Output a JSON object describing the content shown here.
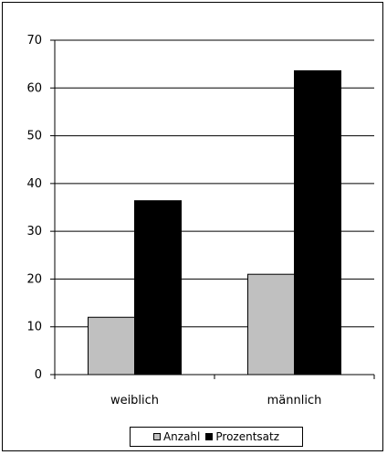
{
  "chart_data": {
    "type": "bar",
    "title": "",
    "xlabel": "",
    "ylabel": "",
    "categories": [
      "weiblich",
      "männlich"
    ],
    "series": [
      {
        "name": "Anzahl",
        "values": [
          12,
          21
        ],
        "color": "#c0c0c0"
      },
      {
        "name": "Prozentsatz",
        "values": [
          36.4,
          63.6
        ],
        "color": "#000000"
      }
    ],
    "ylim": [
      0,
      70
    ],
    "yticks": [
      0,
      10,
      20,
      30,
      40,
      50,
      60,
      70
    ],
    "grid": true,
    "legend_position": "bottom"
  }
}
